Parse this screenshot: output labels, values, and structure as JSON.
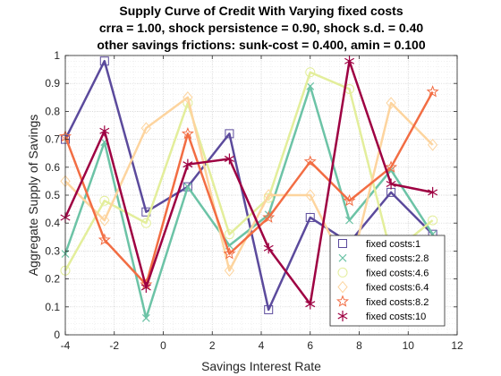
{
  "chart_data": {
    "type": "line",
    "title": [
      "Supply Curve of Credit With Varying fixed costs",
      "crra = 1.00, shock persistence = 0.90, shock s.d. = 0.40",
      "other savings frictions: sunk-cost = 0.400, amin = 0.100"
    ],
    "xlabel": "Savings Interest Rate",
    "ylabel": "Aggregate Supply of Savings",
    "xlim": [
      -4,
      12
    ],
    "ylim": [
      0,
      1
    ],
    "xticks": [
      "-4",
      "-2",
      "0",
      "2",
      "4",
      "6",
      "8",
      "10",
      "12"
    ],
    "yticks": [
      "0",
      "0.1",
      "0.2",
      "0.3",
      "0.4",
      "0.5",
      "0.6",
      "0.7",
      "0.8",
      "0.9",
      "1"
    ],
    "grid": "major and minor dotted",
    "legend_position": "bottom-right",
    "x": [
      -4.0,
      -2.4,
      -0.7,
      1.0,
      2.7,
      4.3,
      6.0,
      7.6,
      9.3,
      11.0
    ],
    "series": [
      {
        "name": "fixed costs:1",
        "color": "#5b4a9c",
        "marker": "square",
        "values": [
          0.7,
          0.98,
          0.44,
          0.53,
          0.72,
          0.09,
          0.42,
          0.33,
          0.51,
          0.36
        ]
      },
      {
        "name": "fixed costs:2.8",
        "color": "#6cc3a6",
        "marker": "x",
        "values": [
          0.29,
          0.69,
          0.06,
          0.53,
          0.32,
          0.43,
          0.89,
          0.41,
          0.59,
          0.36
        ]
      },
      {
        "name": "fixed costs:4.6",
        "color": "#e3ee9b",
        "marker": "circle",
        "values": [
          0.23,
          0.48,
          0.4,
          0.83,
          0.36,
          0.49,
          0.94,
          0.88,
          0.29,
          0.41
        ]
      },
      {
        "name": "fixed costs:6.4",
        "color": "#fdd49e",
        "marker": "diamond",
        "values": [
          0.55,
          0.41,
          0.74,
          0.85,
          0.23,
          0.5,
          0.5,
          0.22,
          0.83,
          0.68
        ]
      },
      {
        "name": "fixed costs:8.2",
        "color": "#f26d43",
        "marker": "star",
        "values": [
          0.71,
          0.34,
          0.18,
          0.72,
          0.29,
          0.42,
          0.62,
          0.48,
          0.6,
          0.87
        ]
      },
      {
        "name": "fixed costs:10",
        "color": "#9e0142",
        "marker": "asterisk",
        "values": [
          0.42,
          0.73,
          0.17,
          0.61,
          0.63,
          0.31,
          0.11,
          0.98,
          0.54,
          0.51
        ]
      }
    ]
  }
}
